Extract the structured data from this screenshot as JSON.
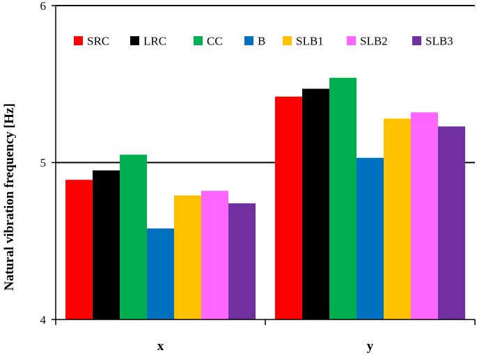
{
  "chart_data": {
    "type": "bar",
    "title": "",
    "xlabel": "",
    "ylabel": "Natural vibration frequency [Hz]",
    "ylim": [
      4,
      6
    ],
    "yticks": [
      4,
      5,
      6
    ],
    "grid": "major horizontal lines",
    "legend_position": "top",
    "categories": [
      "x",
      "y"
    ],
    "series": [
      {
        "name": "SRC",
        "color": "#FF0000",
        "values": [
          4.89,
          5.42
        ]
      },
      {
        "name": "LRC",
        "color": "#000000",
        "values": [
          4.95,
          5.47
        ]
      },
      {
        "name": "CC",
        "color": "#00B050",
        "values": [
          5.05,
          5.54
        ]
      },
      {
        "name": "B",
        "color": "#0070C0",
        "values": [
          4.58,
          5.03
        ]
      },
      {
        "name": "SLB1",
        "color": "#FFC000",
        "values": [
          4.79,
          5.28
        ]
      },
      {
        "name": "SLB2",
        "color": "#FF66FF",
        "values": [
          4.82,
          5.32
        ]
      },
      {
        "name": "SLB3",
        "color": "#7030A0",
        "values": [
          4.74,
          5.23
        ]
      }
    ]
  }
}
